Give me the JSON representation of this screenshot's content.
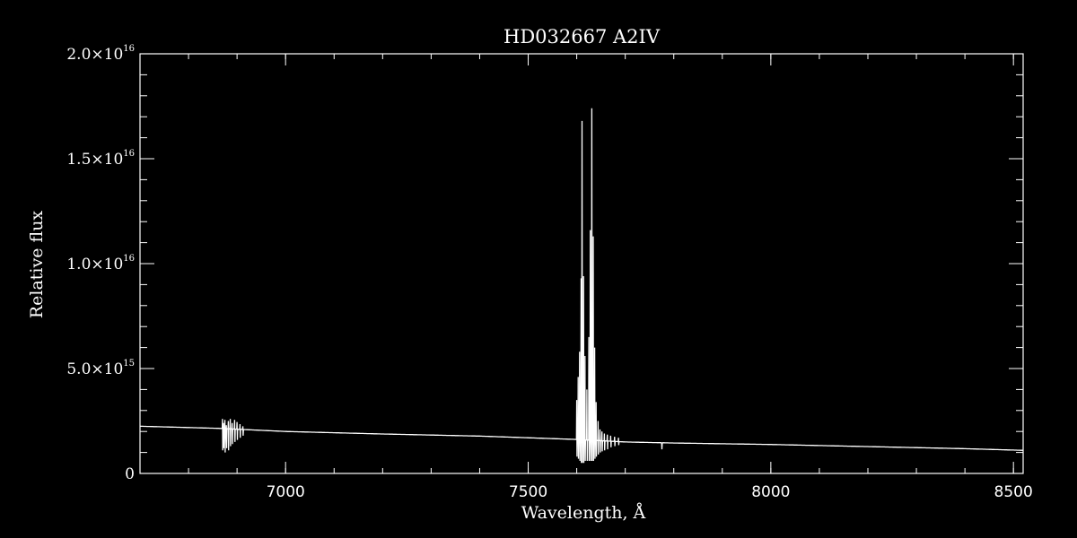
{
  "chart_data": {
    "type": "line",
    "title": "HD032667   A2IV",
    "xlabel": "Wavelength, Å",
    "ylabel": "Relative flux",
    "xlim": [
      6700,
      8520
    ],
    "ylim": [
      0,
      2e+16
    ],
    "xticks": [
      7000,
      7500,
      8000,
      8500
    ],
    "xtick_labels": [
      "7000",
      "7500",
      "8000",
      "8500"
    ],
    "yticks": [
      0,
      5000000000000000.0,
      1e+16,
      1.5e+16,
      2e+16
    ],
    "ytick_labels": [
      {
        "mant": "0",
        "exp": ""
      },
      {
        "mant": "5.0×10",
        "exp": "15"
      },
      {
        "mant": "1.0×10",
        "exp": "16"
      },
      {
        "mant": "1.5×10",
        "exp": "16"
      },
      {
        "mant": "2.0×10",
        "exp": "16"
      }
    ],
    "grid": false,
    "colors": {
      "background": "#000000",
      "foreground": "#ffffff"
    },
    "series": [
      {
        "continuum": [
          [
            6700,
            2250000000000000.0
          ],
          [
            6860,
            2150000000000000.0
          ],
          [
            7000,
            2000000000000000.0
          ],
          [
            7200,
            1880000000000000.0
          ],
          [
            7400,
            1780000000000000.0
          ],
          [
            7600,
            1620000000000000.0
          ],
          [
            7700,
            1500000000000000.0
          ],
          [
            7800,
            1450000000000000.0
          ],
          [
            8000,
            1380000000000000.0
          ],
          [
            8200,
            1280000000000000.0
          ],
          [
            8400,
            1180000000000000.0
          ],
          [
            8520,
            1100000000000000.0
          ]
        ],
        "features": [
          {
            "x": 6870,
            "peak": 2600000000000000.0,
            "min": 1100000000000000.0
          },
          {
            "x": 6872,
            "peak": 2400000000000000.0,
            "min": 1200000000000000.0
          },
          {
            "x": 6875,
            "peak": 2550000000000000.0,
            "min": 1000000000000000.0
          },
          {
            "x": 6878,
            "peak": 2300000000000000.0,
            "min": 1200000000000000.0
          },
          {
            "x": 6882,
            "peak": 2500000000000000.0,
            "min": 1100000000000000.0
          },
          {
            "x": 6886,
            "peak": 2600000000000000.0,
            "min": 1300000000000000.0
          },
          {
            "x": 6890,
            "peak": 2400000000000000.0,
            "min": 1400000000000000.0
          },
          {
            "x": 6895,
            "peak": 2550000000000000.0,
            "min": 1500000000000000.0
          },
          {
            "x": 6900,
            "peak": 2450000000000000.0,
            "min": 1600000000000000.0
          },
          {
            "x": 6906,
            "peak": 2350000000000000.0,
            "min": 1700000000000000.0
          },
          {
            "x": 6912,
            "peak": 2250000000000000.0,
            "min": 1800000000000000.0
          },
          {
            "x": 7600,
            "peak": 3500000000000000.0,
            "min": 800000000000000.0
          },
          {
            "x": 7603,
            "peak": 4600000000000000.0,
            "min": 700000000000000.0
          },
          {
            "x": 7606,
            "peak": 5800000000000000.0,
            "min": 600000000000000.0
          },
          {
            "x": 7609,
            "peak": 9300000000000000.0,
            "min": 500000000000000.0
          },
          {
            "x": 7611,
            "peak": 1.68e+16,
            "min": 500000000000000.0
          },
          {
            "x": 7614,
            "peak": 9400000000000000.0,
            "min": 500000000000000.0
          },
          {
            "x": 7617,
            "peak": 5600000000000000.0,
            "min": 600000000000000.0
          },
          {
            "x": 7621,
            "peak": 4000000000000000.0,
            "min": 600000000000000.0
          },
          {
            "x": 7625,
            "peak": 6500000000000000.0,
            "min": 600000000000000.0
          },
          {
            "x": 7628,
            "peak": 1.16e+16,
            "min": 600000000000000.0
          },
          {
            "x": 7631,
            "peak": 1.74e+16,
            "min": 600000000000000.0
          },
          {
            "x": 7634,
            "peak": 1.13e+16,
            "min": 600000000000000.0
          },
          {
            "x": 7637,
            "peak": 6000000000000000.0,
            "min": 700000000000000.0
          },
          {
            "x": 7640,
            "peak": 3400000000000000.0,
            "min": 800000000000000.0
          },
          {
            "x": 7644,
            "peak": 2500000000000000.0,
            "min": 900000000000000.0
          },
          {
            "x": 7648,
            "peak": 2100000000000000.0,
            "min": 1000000000000000.0
          },
          {
            "x": 7652,
            "peak": 2000000000000000.0,
            "min": 1050000000000000.0
          },
          {
            "x": 7657,
            "peak": 1900000000000000.0,
            "min": 1100000000000000.0
          },
          {
            "x": 7663,
            "peak": 1850000000000000.0,
            "min": 1150000000000000.0
          },
          {
            "x": 7670,
            "peak": 1800000000000000.0,
            "min": 1250000000000000.0
          },
          {
            "x": 7678,
            "peak": 1750000000000000.0,
            "min": 1300000000000000.0
          },
          {
            "x": 7686,
            "peak": 1700000000000000.0,
            "min": 1350000000000000.0
          },
          {
            "x": 7775,
            "peak": 1450000000000000.0,
            "min": 1150000000000000.0
          }
        ]
      }
    ]
  }
}
